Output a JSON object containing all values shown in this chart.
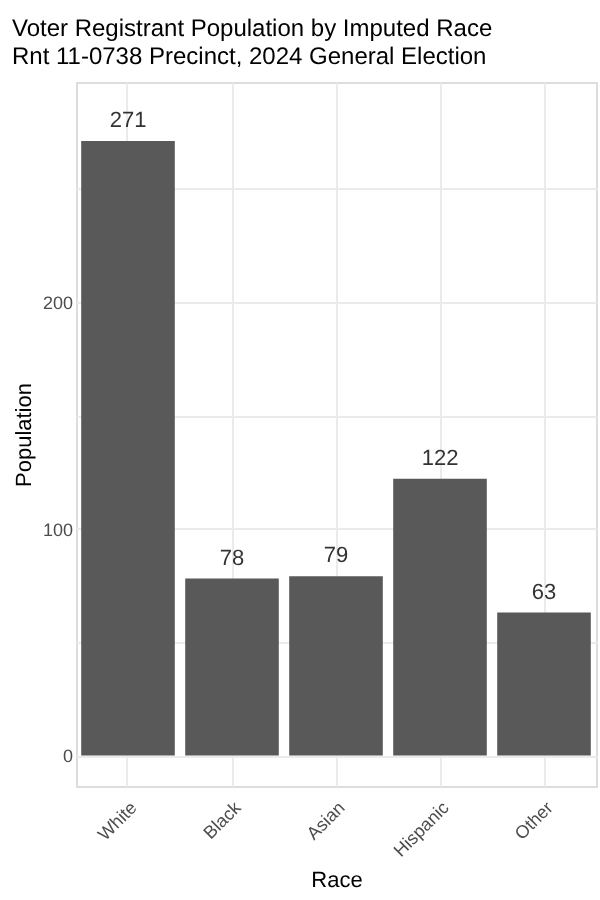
{
  "chart_data": {
    "type": "bar",
    "title": [
      "Voter Registrant Population by Imputed Race",
      "Rnt 11-0738 Precinct,  2024 General Election"
    ],
    "xlabel": "Race",
    "ylabel": "Population",
    "categories": [
      "White",
      "Black",
      "Asian",
      "Hispanic",
      "Other"
    ],
    "values": [
      271,
      78,
      79,
      122,
      63
    ],
    "color": "#595959",
    "data_labels": true,
    "ylim": [
      -13.5,
      297
    ],
    "yticks": [
      0,
      {
        "value": 50,
        "label": null
      },
      100,
      {
        "value": 150,
        "label": null
      },
      200,
      {
        "value": 250,
        "label": null
      }
    ],
    "grid": true
  }
}
